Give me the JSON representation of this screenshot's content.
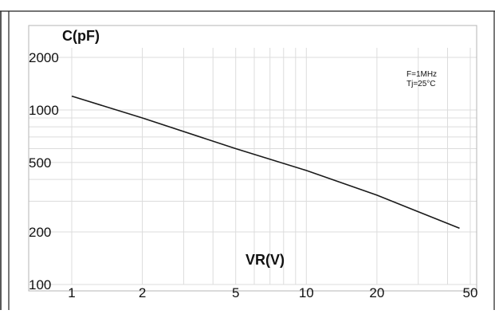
{
  "chart_data": {
    "type": "line",
    "x_scale": "log",
    "y_scale": "log",
    "xlim": [
      1,
      50
    ],
    "ylim": [
      100,
      2000
    ],
    "x_ticks": [
      1,
      2,
      5,
      10,
      20,
      50
    ],
    "x_tick_labels": [
      "1",
      "2",
      "5",
      "10",
      "20",
      "50"
    ],
    "y_ticks": [
      100,
      200,
      500,
      1000,
      2000
    ],
    "y_tick_labels": [
      "100",
      "200",
      "500",
      "1000",
      "2000"
    ],
    "x_minor_gridlines": [
      3,
      4,
      6,
      7,
      8,
      9,
      30,
      40
    ],
    "y_minor_gridlines": [
      300,
      400,
      600,
      700,
      800,
      900
    ],
    "grid": true,
    "xlabel": "VR(V)",
    "ylabel": "C(pF)",
    "annotations": [
      "F=1MHz",
      "Tj=25°C"
    ],
    "series": [
      {
        "x": [
          1,
          2,
          5,
          10,
          20,
          45
        ],
        "y": [
          1200,
          900,
          600,
          450,
          325,
          210
        ]
      }
    ],
    "colors": {
      "line": "#1a1a1a",
      "grid": "#dcdcdc",
      "border": "#222222"
    }
  }
}
